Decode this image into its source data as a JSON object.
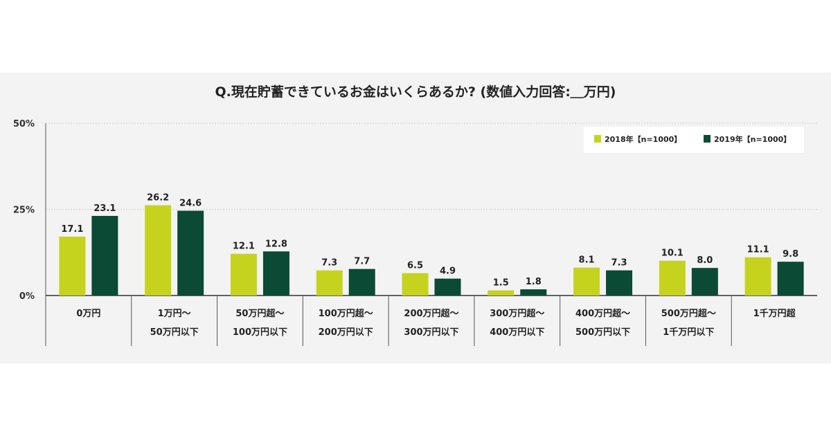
{
  "chart_data": {
    "type": "bar",
    "title": "Q.現在貯蓄できているお金はいくらあるか? (数値入力回答:＿万円)",
    "categories": [
      [
        "0万円"
      ],
      [
        "1万円〜",
        "50万円以下"
      ],
      [
        "50万円超〜",
        "100万円以下"
      ],
      [
        "100万円超〜",
        "200万円以下"
      ],
      [
        "200万円超〜",
        "300万円以下"
      ],
      [
        "300万円超〜",
        "400万円以下"
      ],
      [
        "400万円超〜",
        "500万円以下"
      ],
      [
        "500万円超〜",
        "1千万円以下"
      ],
      [
        "1千万円超"
      ]
    ],
    "series": [
      {
        "name": "2018年【n=1000】",
        "color": "#c6d31e",
        "values": [
          17.1,
          26.2,
          12.1,
          7.3,
          6.5,
          1.5,
          8.1,
          10.1,
          11.1
        ]
      },
      {
        "name": "2019年【n=1000】",
        "color": "#0b4a34",
        "values": [
          23.1,
          24.6,
          12.8,
          7.7,
          4.9,
          1.8,
          7.3,
          8.0,
          9.8
        ]
      }
    ],
    "ylim": [
      0,
      50
    ],
    "yticks": [
      0,
      25,
      50
    ],
    "ytick_labels": [
      "0%",
      "25%",
      "50%"
    ],
    "grid": true,
    "legend_position": "top-right"
  }
}
